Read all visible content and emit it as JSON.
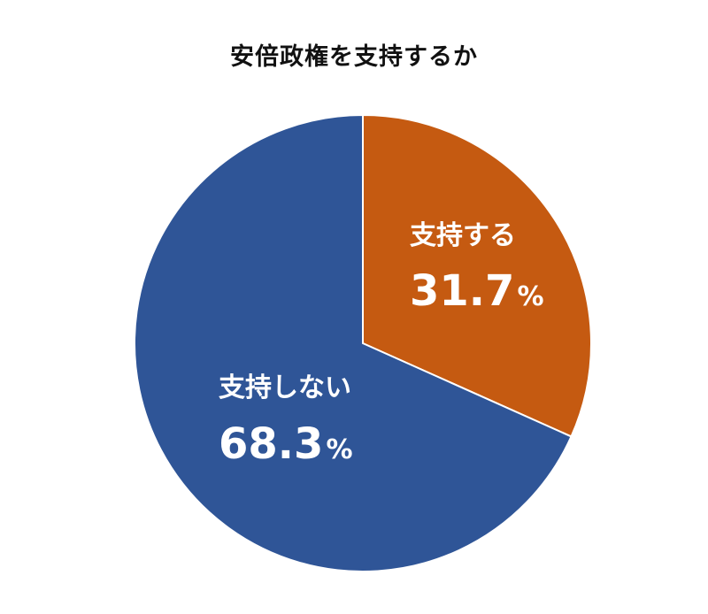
{
  "chart_data": {
    "type": "pie",
    "title": "安倍政権を支持するか",
    "unit": "%",
    "slices": [
      {
        "label": "支持する",
        "value": 31.7,
        "display": "31.7",
        "color": "#C55A11"
      },
      {
        "label": "支持しない",
        "value": 68.3,
        "display": "68.3",
        "color": "#2F5597"
      }
    ],
    "start_angle_deg": 0,
    "direction": "clockwise",
    "legend": "none"
  }
}
